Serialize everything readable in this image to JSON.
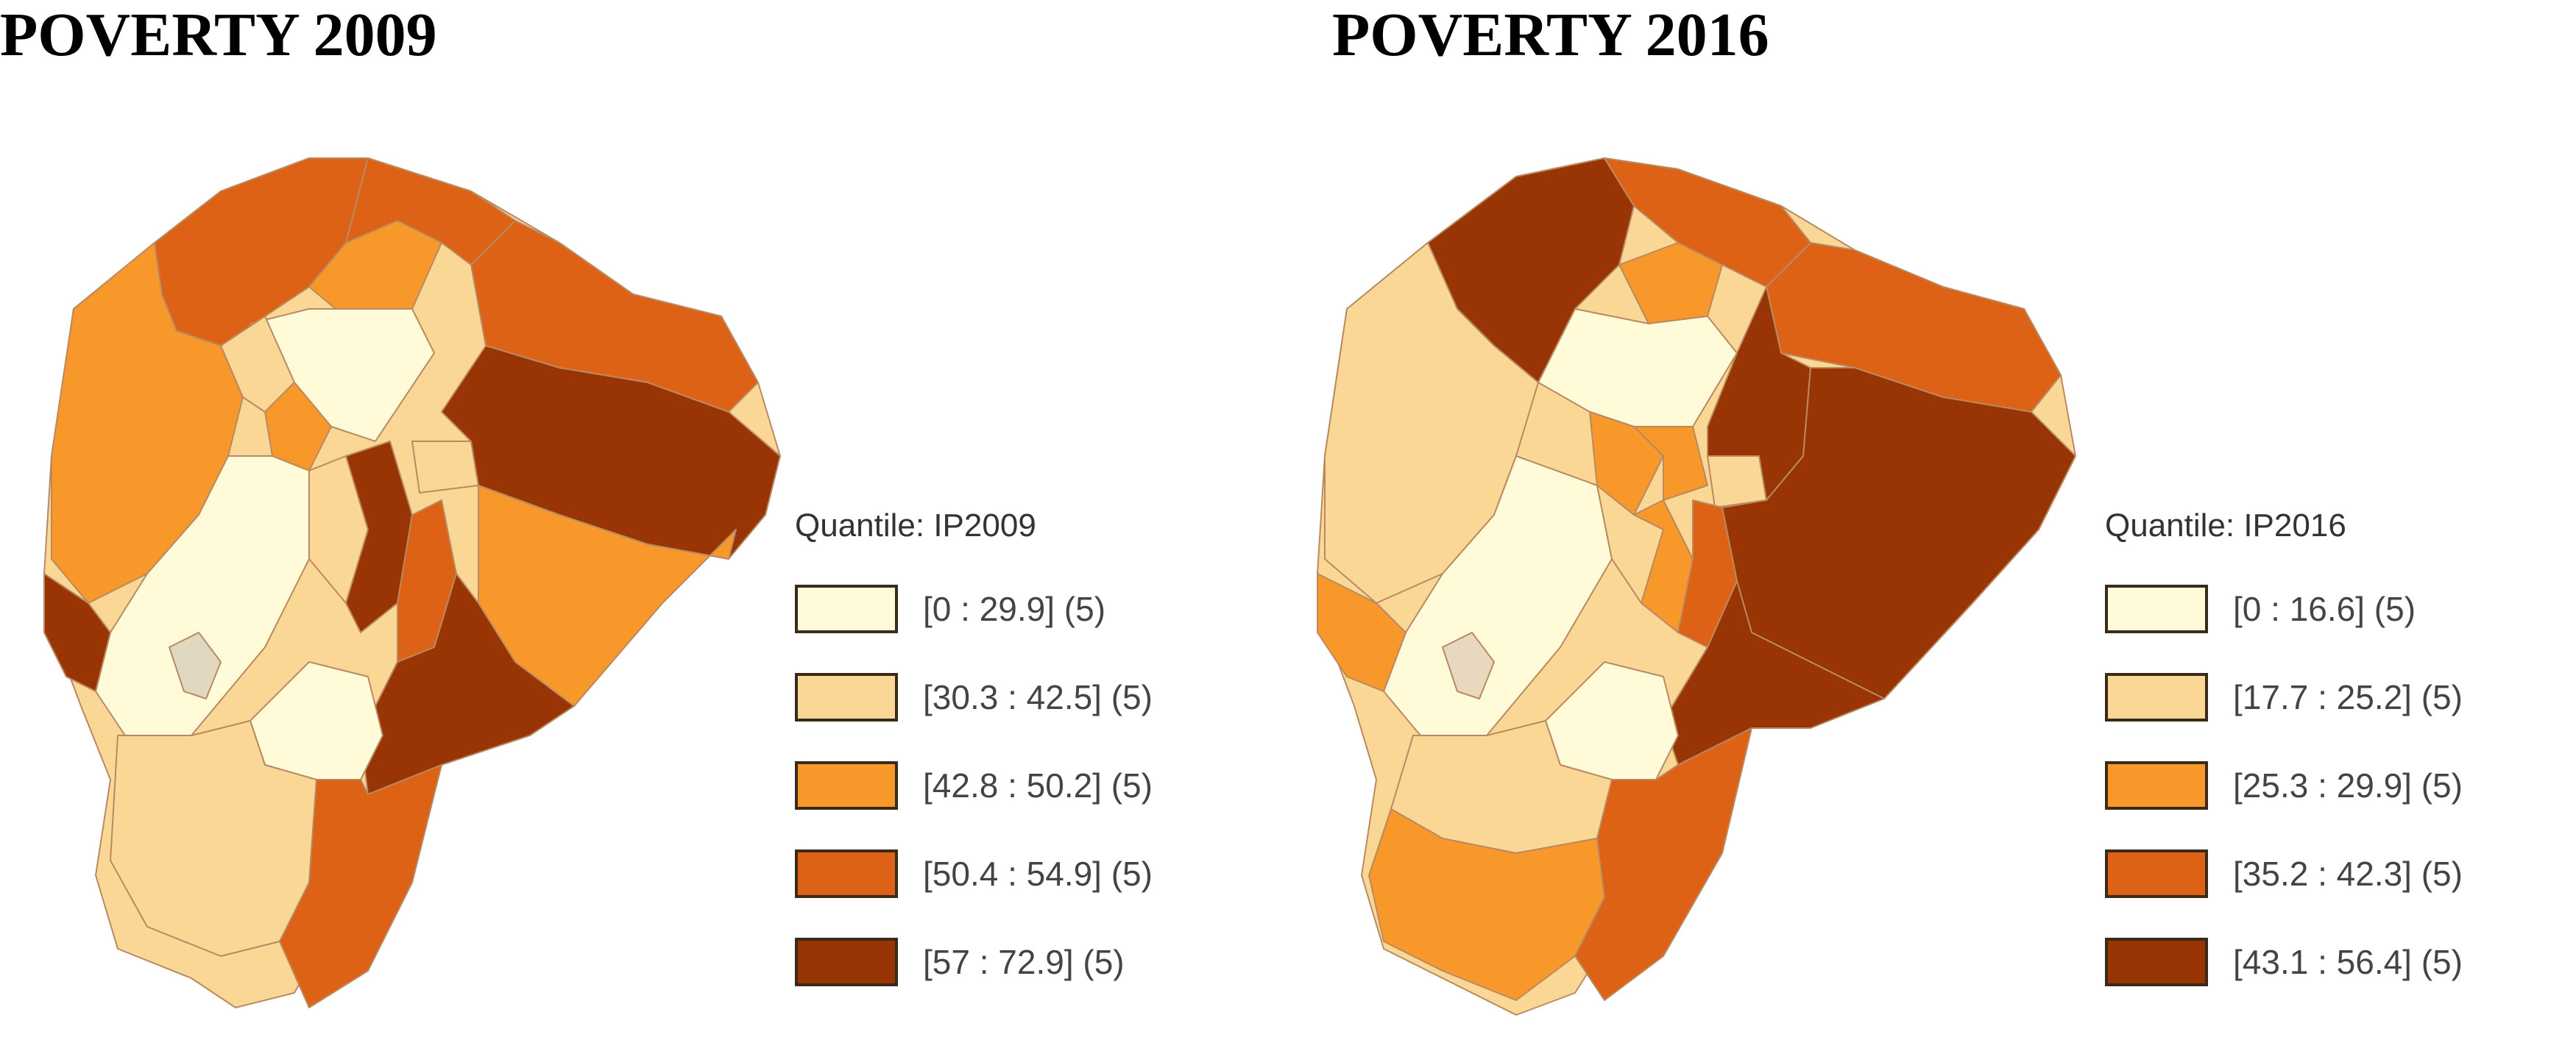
{
  "colors": {
    "q1": "#fffbd8",
    "q2": "#fbd796",
    "q3": "#f9982a",
    "q4": "#dd6216",
    "q5": "#993404",
    "border": "#b98a62"
  },
  "maps": [
    {
      "title": "POVERTY 2009",
      "legend": {
        "title": "Quantile: IP2009",
        "classes": [
          {
            "label": "[0 : 29.9] (5)",
            "color": "#fffbd8"
          },
          {
            "label": "[30.3 : 42.5] (5)",
            "color": "#fbd796"
          },
          {
            "label": "[42.8 : 50.2] (5)",
            "color": "#f9982a"
          },
          {
            "label": "[50.4 : 54.9] (5)",
            "color": "#dd6216"
          },
          {
            "label": "[57 : 72.9] (5)",
            "color": "#993404"
          }
        ]
      }
    },
    {
      "title": "POVERTY 2016",
      "legend": {
        "title": "Quantile: IP2016",
        "classes": [
          {
            "label": "[0 : 16.6] (5)",
            "color": "#fffbd8"
          },
          {
            "label": "[17.7 : 25.2] (5)",
            "color": "#fbd796"
          },
          {
            "label": "[25.3 : 29.9] (5)",
            "color": "#f9982a"
          },
          {
            "label": "[35.2 : 42.3] (5)",
            "color": "#dd6216"
          },
          {
            "label": "[43.1 : 56.4] (5)",
            "color": "#993404"
          }
        ]
      }
    }
  ]
}
